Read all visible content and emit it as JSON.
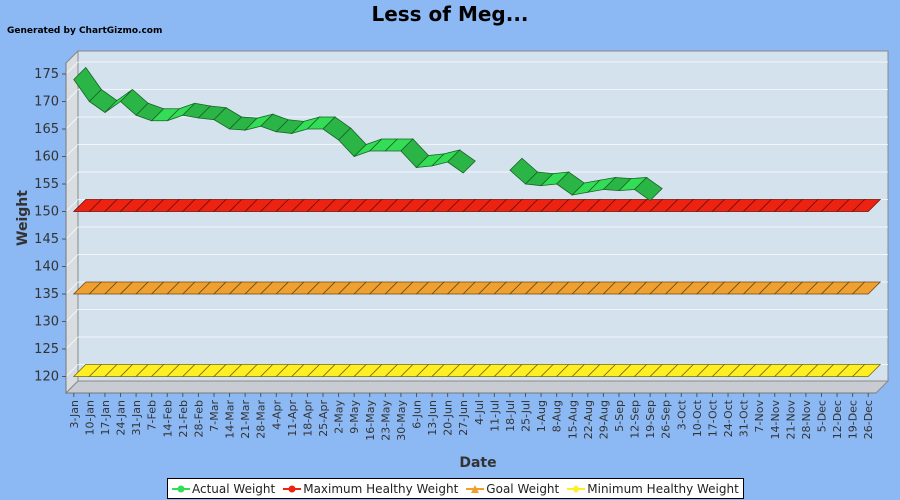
{
  "header": {
    "title": "Less of Meg...",
    "credit": "Generated by ChartGizmo.com"
  },
  "chart_data": {
    "type": "line",
    "title": "Less of Meg...",
    "xlabel": "Date",
    "ylabel": "Weight",
    "ylim": [
      117,
      177
    ],
    "yticks": [
      120,
      125,
      130,
      135,
      140,
      145,
      150,
      155,
      160,
      165,
      170,
      175
    ],
    "grid": true,
    "legend_position": "bottom",
    "categories": [
      "3-Jan",
      "10-Jan",
      "17-Jan",
      "24-Jan",
      "31-Jan",
      "7-Feb",
      "14-Feb",
      "21-Feb",
      "28-Feb",
      "7-Mar",
      "14-Mar",
      "21-Mar",
      "28-Mar",
      "4-Apr",
      "11-Apr",
      "18-Apr",
      "25-Apr",
      "2-May",
      "9-May",
      "16-May",
      "23-May",
      "30-May",
      "6-Jun",
      "13-Jun",
      "20-Jun",
      "27-Jun",
      "4-Jul",
      "11-Jul",
      "18-Jul",
      "25-Jul",
      "1-Aug",
      "8-Aug",
      "15-Aug",
      "22-Aug",
      "29-Aug",
      "5-Sep",
      "12-Sep",
      "19-Sep",
      "26-Sep",
      "3-Oct",
      "10-Oct",
      "17-Oct",
      "24-Oct",
      "31-Oct",
      "7-Nov",
      "14-Nov",
      "21-Nov",
      "28-Nov",
      "5-Dec",
      "12-Dec",
      "19-Dec",
      "26-Dec"
    ],
    "series": [
      {
        "name": "Actual Weight",
        "color": "#33dd55",
        "values": [
          174,
          170,
          168,
          170,
          167.5,
          166.5,
          166.5,
          167.5,
          167,
          166.7,
          165,
          164.8,
          165.5,
          164.5,
          164.2,
          165,
          165,
          163,
          160,
          161,
          161,
          161,
          158,
          158.3,
          159,
          157,
          null,
          null,
          157.5,
          155,
          154.7,
          155,
          153,
          153.5,
          154,
          153.8,
          154,
          152,
          null,
          null,
          null,
          null,
          null,
          null,
          null,
          null,
          null,
          null,
          null,
          null,
          null,
          null
        ]
      },
      {
        "name": "Maximum Healthy Weight",
        "color": "#ee2211",
        "values": [
          150,
          150,
          150,
          150,
          150,
          150,
          150,
          150,
          150,
          150,
          150,
          150,
          150,
          150,
          150,
          150,
          150,
          150,
          150,
          150,
          150,
          150,
          150,
          150,
          150,
          150,
          150,
          150,
          150,
          150,
          150,
          150,
          150,
          150,
          150,
          150,
          150,
          150,
          150,
          150,
          150,
          150,
          150,
          150,
          150,
          150,
          150,
          150,
          150,
          150,
          150,
          150
        ]
      },
      {
        "name": "Goal Weight",
        "color": "#f0a030",
        "values": [
          135,
          135,
          135,
          135,
          135,
          135,
          135,
          135,
          135,
          135,
          135,
          135,
          135,
          135,
          135,
          135,
          135,
          135,
          135,
          135,
          135,
          135,
          135,
          135,
          135,
          135,
          135,
          135,
          135,
          135,
          135,
          135,
          135,
          135,
          135,
          135,
          135,
          135,
          135,
          135,
          135,
          135,
          135,
          135,
          135,
          135,
          135,
          135,
          135,
          135,
          135,
          135
        ]
      },
      {
        "name": "Minimum Healthy Weight",
        "color": "#ffee22",
        "values": [
          120,
          120,
          120,
          120,
          120,
          120,
          120,
          120,
          120,
          120,
          120,
          120,
          120,
          120,
          120,
          120,
          120,
          120,
          120,
          120,
          120,
          120,
          120,
          120,
          120,
          120,
          120,
          120,
          120,
          120,
          120,
          120,
          120,
          120,
          120,
          120,
          120,
          120,
          120,
          120,
          120,
          120,
          120,
          120,
          120,
          120,
          120,
          120,
          120,
          120,
          120,
          120
        ]
      }
    ]
  }
}
